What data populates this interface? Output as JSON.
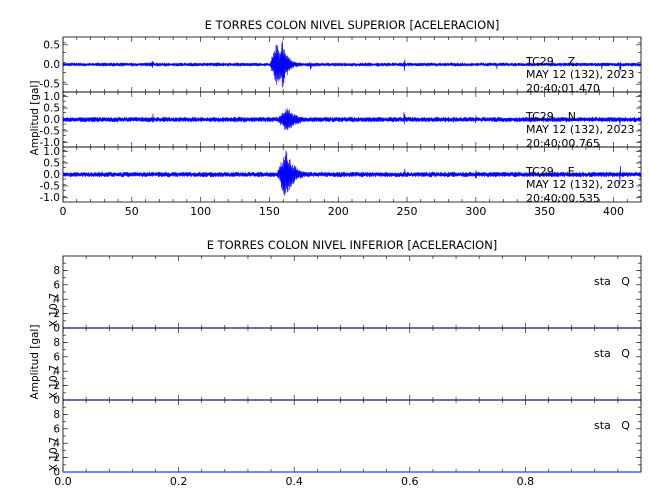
{
  "chart_data": [
    {
      "type": "line",
      "title": "E TORRES COLON NIVEL SUPERIOR [ACELERACION]",
      "ylabel": "Amplitud [gal]",
      "xlim": [
        0,
        420
      ],
      "x_ticks": [
        "0",
        "50",
        "100",
        "150",
        "200",
        "250",
        "300",
        "350",
        "400"
      ],
      "panels": [
        {
          "name": "TC29 Z",
          "station_label": "TC29    Z",
          "date_label": "MAY 12 (132), 2023",
          "time_label": "20:40:01.470",
          "ylim": [
            -0.7,
            0.7
          ],
          "y_ticks": [
            "0.5",
            "0.0",
            "-0.5"
          ],
          "tick_values": [
            0.5,
            0.0,
            -0.5
          ],
          "noise_amplitude": 0.05,
          "events": [
            {
              "start": 150,
              "peak": 155,
              "end": 175,
              "amplitude": 0.6
            },
            {
              "start": 155,
              "peak": 160,
              "end": 170,
              "amplitude": 0.7
            }
          ],
          "spikes": [
            [
              65,
              0.15
            ],
            [
              180,
              0.2
            ],
            [
              248,
              0.18
            ],
            [
              315,
              0.12
            ],
            [
              392,
              0.15
            ],
            [
              405,
              0.25
            ]
          ]
        },
        {
          "name": "TC29 N",
          "station_label": "TC29    N",
          "date_label": "MAY 12 (132), 2023",
          "time_label": "20:40:00.765",
          "ylim": [
            -1.2,
            1.2
          ],
          "y_ticks": [
            "1.0",
            "0.5",
            "0.0",
            "-0.5",
            "-1.0"
          ],
          "tick_values": [
            1.0,
            0.5,
            0.0,
            -0.5,
            -1.0
          ],
          "noise_amplitude": 0.12,
          "events": [
            {
              "start": 155,
              "peak": 162,
              "end": 185,
              "amplitude": 0.65
            }
          ],
          "spikes": [
            [
              65,
              0.3
            ],
            [
              248,
              0.35
            ],
            [
              300,
              0.25
            ],
            [
              405,
              0.45
            ]
          ]
        },
        {
          "name": "TC29 E",
          "station_label": "TC29    E",
          "date_label": "MAY 12 (132), 2023",
          "time_label": "20:40:00.535",
          "ylim": [
            -1.2,
            1.2
          ],
          "y_ticks": [
            "1.0",
            "0.5",
            "0.0",
            "-0.5",
            "-1.0"
          ],
          "tick_values": [
            1.0,
            0.5,
            0.0,
            -0.5,
            -1.0
          ],
          "noise_amplitude": 0.12,
          "events": [
            {
              "start": 155,
              "peak": 162,
              "end": 180,
              "amplitude": 1.15
            }
          ],
          "spikes": [
            [
              65,
              0.3
            ],
            [
              248,
              0.3
            ],
            [
              300,
              0.25
            ],
            [
              405,
              0.45
            ]
          ]
        }
      ]
    },
    {
      "type": "line",
      "title": "E TORRES COLON NIVEL INFERIOR [ACELERACION]",
      "ylabel": "Amplitud [gal]",
      "scale_label": "X 10-7",
      "xlim": [
        0.0,
        1.0
      ],
      "x_ticks": [
        "0.0",
        "0.2",
        "0.4",
        "0.6",
        "0.8"
      ],
      "panels": [
        {
          "name": "sta Q",
          "station_label": "sta   Q",
          "ylim": [
            0,
            10
          ],
          "y_ticks": [
            "8",
            "6",
            "4",
            "2",
            "0"
          ],
          "tick_values": [
            8,
            6,
            4,
            2,
            0
          ],
          "value": 0
        },
        {
          "name": "sta Q",
          "station_label": "sta   Q",
          "ylim": [
            0,
            10
          ],
          "y_ticks": [
            "8",
            "6",
            "4",
            "2",
            "0"
          ],
          "tick_values": [
            8,
            6,
            4,
            2,
            0
          ],
          "value": 0
        },
        {
          "name": "sta Q",
          "station_label": "sta   Q",
          "ylim": [
            0,
            10
          ],
          "y_ticks": [
            "8",
            "6",
            "4",
            "2",
            "0"
          ],
          "tick_values": [
            8,
            6,
            4,
            2,
            0
          ],
          "value": 0
        }
      ]
    }
  ]
}
